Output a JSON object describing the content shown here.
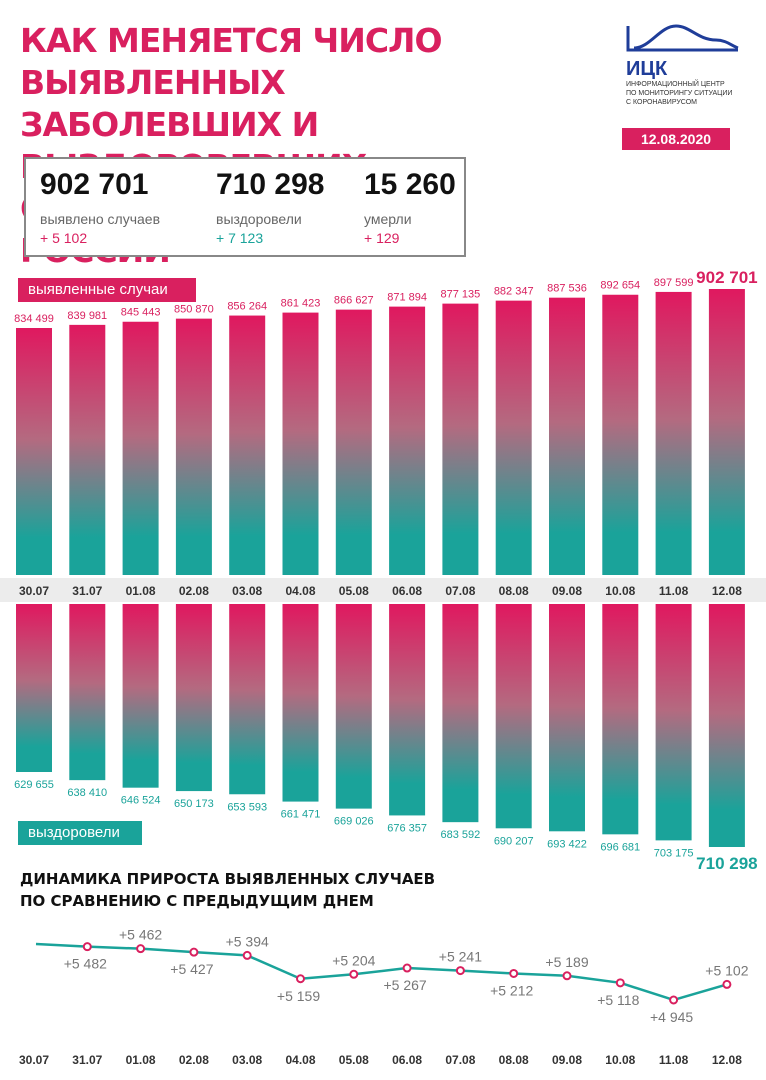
{
  "header": {
    "title_lines": [
      "КАК МЕНЯЕТСЯ ЧИСЛО ВЫЯВЛЕННЫХ",
      "ЗАБОЛЕВШИХ И ВЫЗДОРОВЕВШИХ",
      "ОТ КОРОНАВИРУСА В РОССИИ"
    ],
    "logo_name": "ИЦК",
    "logo_caption_lines": [
      "ИНФОРМАЦИОННЫЙ ЦЕНТР",
      "ПО МОНИТОРИНГУ СИТУАЦИИ",
      "С КОРОНАВИРУСОМ"
    ],
    "date": "12.08.2020"
  },
  "summary": {
    "cases": {
      "value": "902 701",
      "label": "выявлено случаев",
      "delta": "+ 5 102"
    },
    "recovered": {
      "value": "710 298",
      "label": "выздоровели",
      "delta": "+ 7 123"
    },
    "deaths": {
      "value": "15 260",
      "label": "умерли",
      "delta": "+ 129"
    }
  },
  "colors": {
    "pink": "#d9205f",
    "teal": "#1aa39a",
    "date_band": "#ececec"
  },
  "chart_data": [
    {
      "type": "bar",
      "tag": "выявленные случаи",
      "categories": [
        "30.07",
        "31.07",
        "01.08",
        "02.08",
        "03.08",
        "04.08",
        "05.08",
        "06.08",
        "07.08",
        "08.08",
        "09.08",
        "10.08",
        "11.08",
        "12.08"
      ],
      "values": [
        834499,
        839981,
        845443,
        850870,
        856264,
        861423,
        866627,
        871894,
        877135,
        882347,
        887536,
        892654,
        897599,
        902701
      ],
      "value_labels": [
        "834 499",
        "839 981",
        "845 443",
        "850 870",
        "856 264",
        "861 423",
        "866 627",
        "871 894",
        "877 135",
        "882 347",
        "887 536",
        "892 654",
        "897 599",
        "902 701"
      ]
    },
    {
      "type": "bar",
      "tag": "выздоровели",
      "categories": [
        "30.07",
        "31.07",
        "01.08",
        "02.08",
        "03.08",
        "04.08",
        "05.08",
        "06.08",
        "07.08",
        "08.08",
        "09.08",
        "10.08",
        "11.08",
        "12.08"
      ],
      "values": [
        629655,
        638410,
        646524,
        650173,
        653593,
        661471,
        669026,
        676357,
        683592,
        690207,
        693422,
        696681,
        703175,
        710298
      ],
      "value_labels": [
        "629 655",
        "638 410",
        "646 524",
        "650 173",
        "653 593",
        "661 471",
        "669 026",
        "676 357",
        "683 592",
        "690 207",
        "693 422",
        "696 681",
        "703 175",
        "710 298"
      ]
    },
    {
      "type": "line",
      "title_lines": [
        "ДИНАМИКА ПРИРОСТА ВЫЯВЛЕННЫХ СЛУЧАЕВ",
        "ПО СРАВНЕНИЮ С ПРЕДЫДУЩИМ ДНЕМ"
      ],
      "categories": [
        "30.07",
        "31.07",
        "01.08",
        "02.08",
        "03.08",
        "04.08",
        "05.08",
        "06.08",
        "07.08",
        "08.08",
        "09.08",
        "10.08",
        "11.08",
        "12.08"
      ],
      "values": [
        5509,
        5482,
        5462,
        5427,
        5394,
        5159,
        5204,
        5267,
        5241,
        5212,
        5189,
        5118,
        4945,
        5102
      ],
      "value_labels": [
        "",
        "+5 482",
        "+5 462",
        "+5 427",
        "+5 394",
        "+5 159",
        "+5 204",
        "+5 267",
        "+5 241",
        "+5 212",
        "+5 189",
        "+5 118",
        "+4 945",
        "+5 102"
      ]
    }
  ]
}
